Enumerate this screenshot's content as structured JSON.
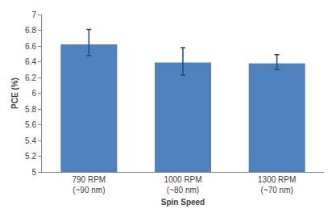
{
  "chart_data": {
    "type": "bar",
    "x_label": "Spin Speed",
    "y_label": "PCE (%)",
    "categories": [
      "790 RPM\n(~90 nm)",
      "1000 RPM\n(~80 nm)",
      "1300 RPM\n(~70 nm)"
    ],
    "values": [
      6.62,
      6.39,
      6.38
    ],
    "error_plus": [
      0.19,
      0.19,
      0.11
    ],
    "error_minus": [
      0.14,
      0.16,
      0.08
    ],
    "color": "#4f81bd",
    "ylim": [
      5,
      7
    ],
    "yticks": [
      5,
      5.2,
      5.4,
      5.6,
      5.8,
      6,
      6.2,
      6.4,
      6.6,
      6.8,
      7
    ],
    "grid": false
  }
}
